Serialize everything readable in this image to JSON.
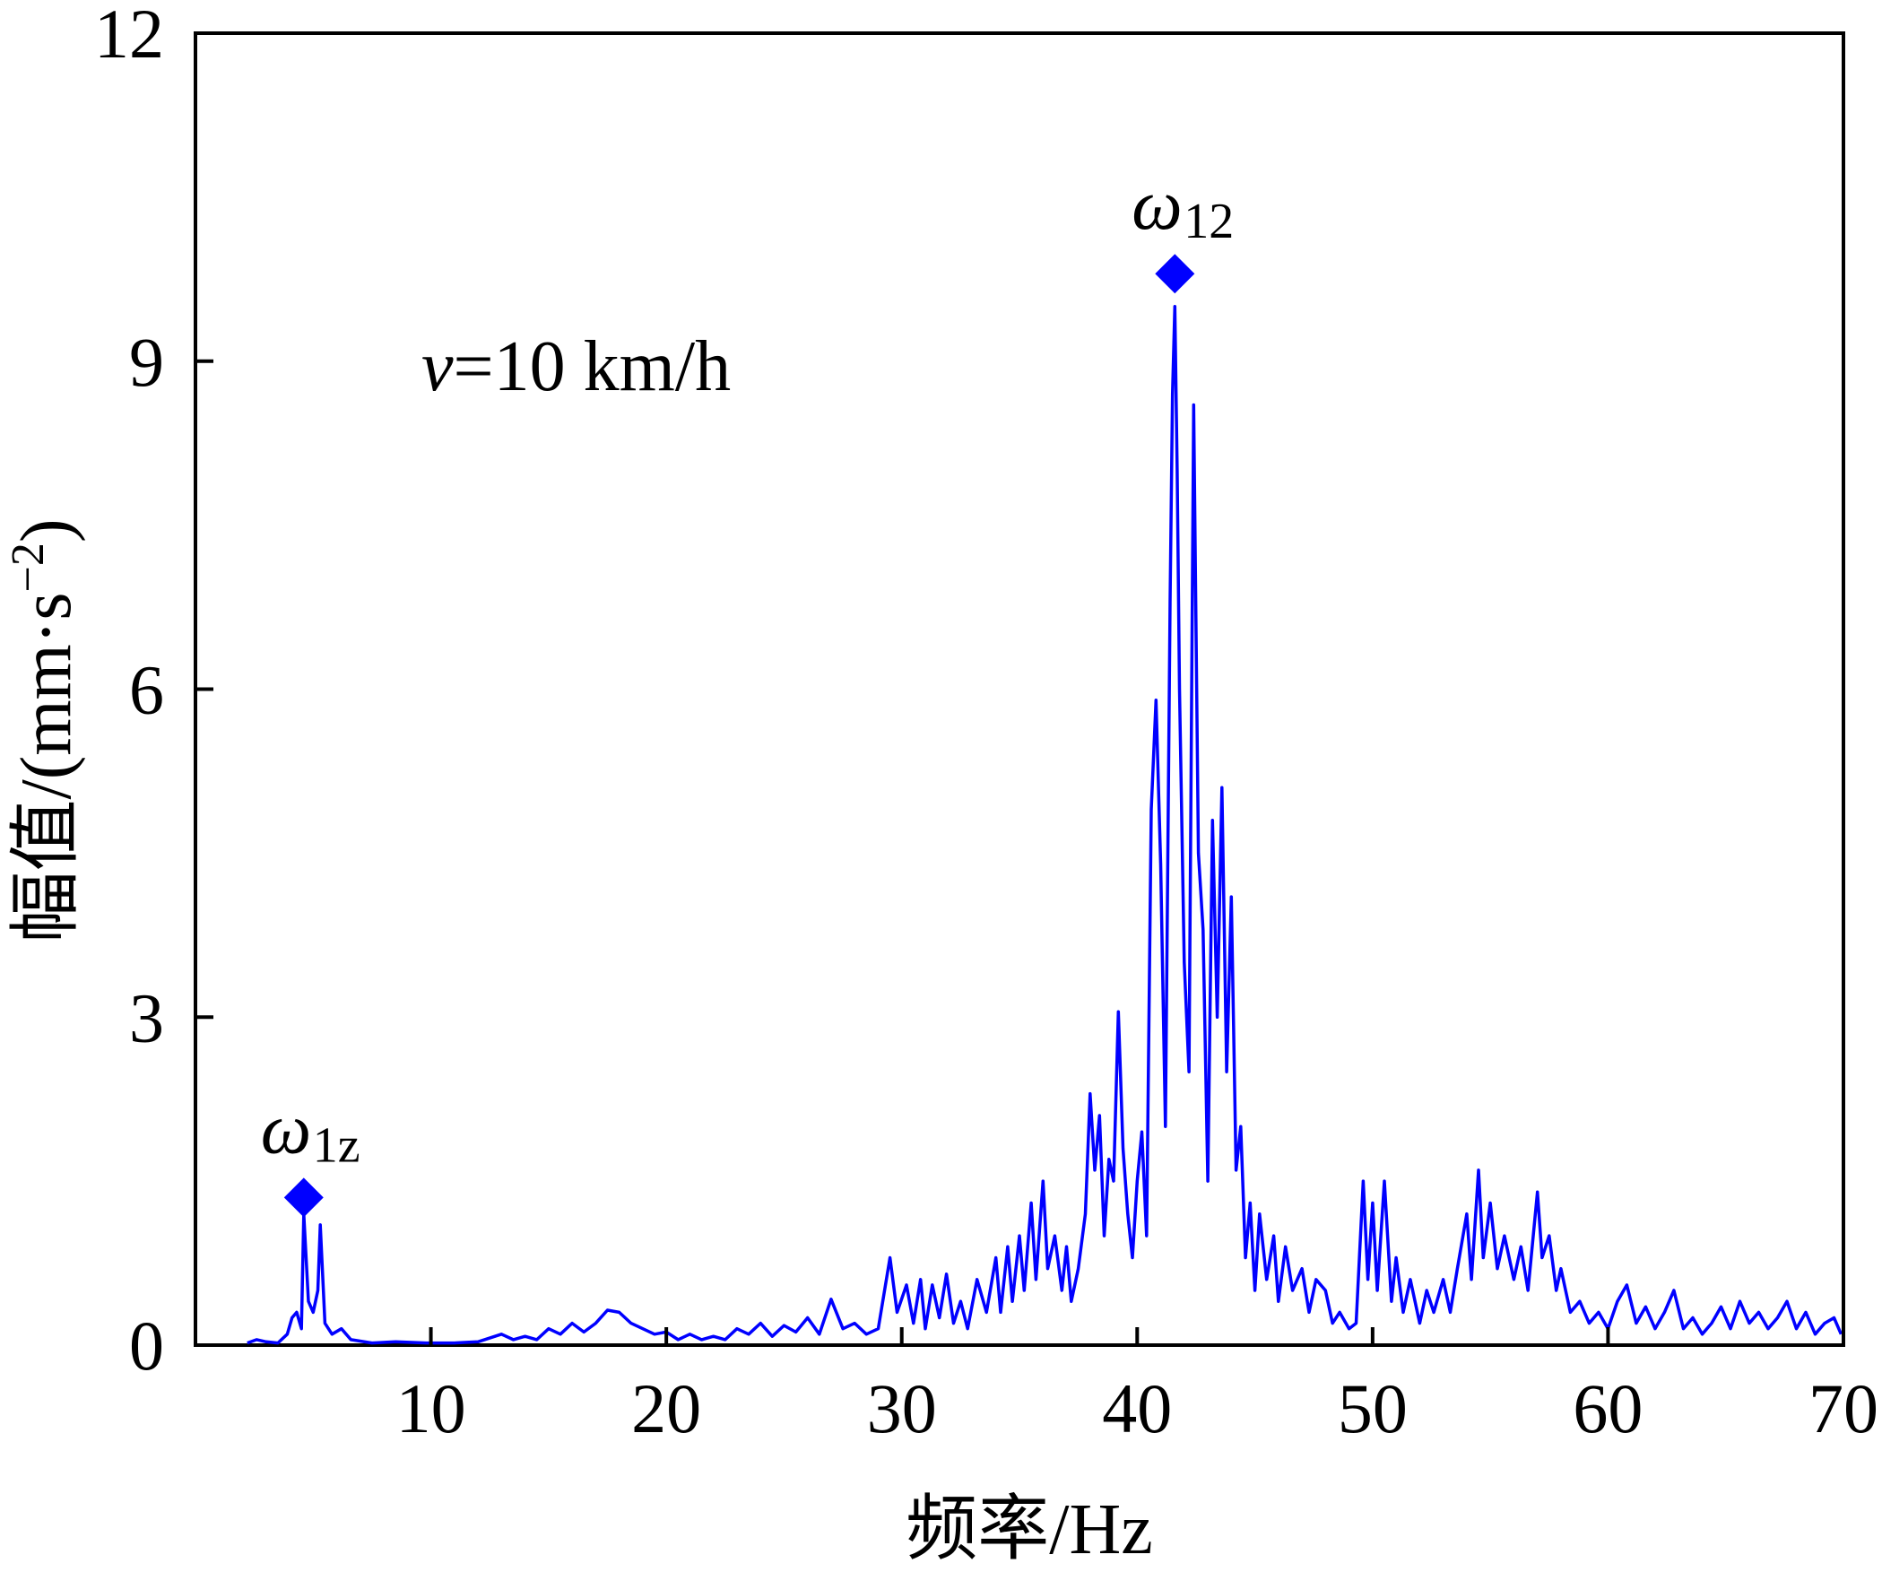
{
  "chart_data": {
    "type": "line",
    "xlabel": "频率/Hz",
    "ylabel": "幅值/(mm·s",
    "ylabel_sup": "−2",
    "ylabel_close": ")",
    "xlim": [
      0,
      70
    ],
    "ylim": [
      0,
      12
    ],
    "x_ticks": [
      10,
      20,
      30,
      40,
      50,
      60,
      70
    ],
    "x_tick_labels": [
      "10",
      "20",
      "30",
      "40",
      "50",
      "60",
      "70"
    ],
    "y_ticks": [
      0,
      3,
      6,
      9,
      12
    ],
    "y_tick_labels": [
      "0",
      "3",
      "6",
      "9",
      "12"
    ],
    "grid": false,
    "line_color": "#0000ff",
    "marker_color": "#0000ff",
    "annotation": {
      "prefix": "v",
      "text": "=10 km/h"
    },
    "peaks": [
      {
        "symbol": "ω",
        "subscript": "1z",
        "x": 4.6,
        "y": 1.35
      },
      {
        "symbol": "ω",
        "subscript": "12",
        "x": 41.6,
        "y": 9.8
      }
    ],
    "series": [
      {
        "values": [
          [
            2.2,
            0.02
          ],
          [
            2.6,
            0.05
          ],
          [
            3.0,
            0.03
          ],
          [
            3.5,
            0.02
          ],
          [
            3.9,
            0.1
          ],
          [
            4.1,
            0.25
          ],
          [
            4.3,
            0.3
          ],
          [
            4.5,
            0.15
          ],
          [
            4.6,
            1.2
          ],
          [
            4.7,
            0.8
          ],
          [
            4.8,
            0.4
          ],
          [
            5.0,
            0.3
          ],
          [
            5.2,
            0.5
          ],
          [
            5.3,
            1.1
          ],
          [
            5.5,
            0.2
          ],
          [
            5.8,
            0.1
          ],
          [
            6.2,
            0.15
          ],
          [
            6.6,
            0.05
          ],
          [
            7.5,
            0.02
          ],
          [
            8.5,
            0.03
          ],
          [
            9.8,
            0.02
          ],
          [
            11.0,
            0.02
          ],
          [
            12.0,
            0.03
          ],
          [
            13.0,
            0.1
          ],
          [
            13.5,
            0.05
          ],
          [
            14.0,
            0.08
          ],
          [
            14.5,
            0.05
          ],
          [
            15.0,
            0.15
          ],
          [
            15.5,
            0.1
          ],
          [
            16.0,
            0.2
          ],
          [
            16.5,
            0.12
          ],
          [
            17.0,
            0.2
          ],
          [
            17.5,
            0.32
          ],
          [
            18.0,
            0.3
          ],
          [
            18.5,
            0.2
          ],
          [
            19.0,
            0.15
          ],
          [
            19.5,
            0.1
          ],
          [
            20.0,
            0.12
          ],
          [
            20.5,
            0.05
          ],
          [
            21.0,
            0.1
          ],
          [
            21.5,
            0.05
          ],
          [
            22.0,
            0.08
          ],
          [
            22.5,
            0.05
          ],
          [
            23.0,
            0.15
          ],
          [
            23.5,
            0.1
          ],
          [
            24.0,
            0.2
          ],
          [
            24.5,
            0.08
          ],
          [
            25.0,
            0.18
          ],
          [
            25.5,
            0.12
          ],
          [
            26.0,
            0.25
          ],
          [
            26.5,
            0.1
          ],
          [
            27.0,
            0.42
          ],
          [
            27.5,
            0.15
          ],
          [
            28.0,
            0.2
          ],
          [
            28.5,
            0.1
          ],
          [
            29.0,
            0.15
          ],
          [
            29.5,
            0.8
          ],
          [
            29.8,
            0.3
          ],
          [
            30.2,
            0.55
          ],
          [
            30.5,
            0.2
          ],
          [
            30.8,
            0.6
          ],
          [
            31.0,
            0.15
          ],
          [
            31.3,
            0.55
          ],
          [
            31.6,
            0.25
          ],
          [
            31.9,
            0.65
          ],
          [
            32.2,
            0.2
          ],
          [
            32.5,
            0.4
          ],
          [
            32.8,
            0.15
          ],
          [
            33.2,
            0.6
          ],
          [
            33.6,
            0.3
          ],
          [
            34.0,
            0.8
          ],
          [
            34.2,
            0.3
          ],
          [
            34.5,
            0.9
          ],
          [
            34.7,
            0.4
          ],
          [
            35.0,
            1.0
          ],
          [
            35.2,
            0.5
          ],
          [
            35.5,
            1.3
          ],
          [
            35.7,
            0.6
          ],
          [
            36.0,
            1.5
          ],
          [
            36.2,
            0.7
          ],
          [
            36.5,
            1.0
          ],
          [
            36.8,
            0.5
          ],
          [
            37.0,
            0.9
          ],
          [
            37.2,
            0.4
          ],
          [
            37.5,
            0.7
          ],
          [
            37.8,
            1.2
          ],
          [
            38.0,
            2.3
          ],
          [
            38.2,
            1.6
          ],
          [
            38.4,
            2.1
          ],
          [
            38.6,
            1.0
          ],
          [
            38.8,
            1.7
          ],
          [
            39.0,
            1.5
          ],
          [
            39.2,
            3.05
          ],
          [
            39.4,
            1.8
          ],
          [
            39.6,
            1.2
          ],
          [
            39.8,
            0.8
          ],
          [
            40.0,
            1.5
          ],
          [
            40.2,
            1.95
          ],
          [
            40.4,
            1.0
          ],
          [
            40.6,
            4.9
          ],
          [
            40.8,
            5.9
          ],
          [
            41.0,
            4.4
          ],
          [
            41.2,
            2.0
          ],
          [
            41.4,
            6.8
          ],
          [
            41.5,
            8.7
          ],
          [
            41.6,
            9.5
          ],
          [
            41.7,
            8.0
          ],
          [
            41.8,
            6.0
          ],
          [
            42.0,
            3.5
          ],
          [
            42.2,
            2.5
          ],
          [
            42.4,
            8.6
          ],
          [
            42.6,
            4.5
          ],
          [
            42.8,
            3.8
          ],
          [
            43.0,
            1.5
          ],
          [
            43.2,
            4.8
          ],
          [
            43.4,
            3.0
          ],
          [
            43.6,
            5.1
          ],
          [
            43.8,
            2.5
          ],
          [
            44.0,
            4.1
          ],
          [
            44.2,
            1.6
          ],
          [
            44.4,
            2.0
          ],
          [
            44.6,
            0.8
          ],
          [
            44.8,
            1.3
          ],
          [
            45.0,
            0.5
          ],
          [
            45.2,
            1.2
          ],
          [
            45.5,
            0.6
          ],
          [
            45.8,
            1.0
          ],
          [
            46.0,
            0.4
          ],
          [
            46.3,
            0.9
          ],
          [
            46.6,
            0.5
          ],
          [
            47.0,
            0.7
          ],
          [
            47.3,
            0.3
          ],
          [
            47.6,
            0.6
          ],
          [
            48.0,
            0.5
          ],
          [
            48.3,
            0.2
          ],
          [
            48.6,
            0.3
          ],
          [
            49.0,
            0.15
          ],
          [
            49.3,
            0.2
          ],
          [
            49.6,
            1.5
          ],
          [
            49.8,
            0.6
          ],
          [
            50.0,
            1.3
          ],
          [
            50.2,
            0.5
          ],
          [
            50.5,
            1.5
          ],
          [
            50.8,
            0.4
          ],
          [
            51.0,
            0.8
          ],
          [
            51.3,
            0.3
          ],
          [
            51.6,
            0.6
          ],
          [
            52.0,
            0.2
          ],
          [
            52.3,
            0.5
          ],
          [
            52.6,
            0.3
          ],
          [
            53.0,
            0.6
          ],
          [
            53.3,
            0.3
          ],
          [
            53.6,
            0.7
          ],
          [
            54.0,
            1.2
          ],
          [
            54.2,
            0.6
          ],
          [
            54.5,
            1.6
          ],
          [
            54.7,
            0.8
          ],
          [
            55.0,
            1.3
          ],
          [
            55.3,
            0.7
          ],
          [
            55.6,
            1.0
          ],
          [
            56.0,
            0.6
          ],
          [
            56.3,
            0.9
          ],
          [
            56.6,
            0.5
          ],
          [
            57.0,
            1.4
          ],
          [
            57.2,
            0.8
          ],
          [
            57.5,
            1.0
          ],
          [
            57.8,
            0.5
          ],
          [
            58.0,
            0.7
          ],
          [
            58.4,
            0.3
          ],
          [
            58.8,
            0.4
          ],
          [
            59.2,
            0.2
          ],
          [
            59.6,
            0.3
          ],
          [
            60.0,
            0.15
          ],
          [
            60.4,
            0.4
          ],
          [
            60.8,
            0.55
          ],
          [
            61.2,
            0.2
          ],
          [
            61.6,
            0.35
          ],
          [
            62.0,
            0.15
          ],
          [
            62.4,
            0.3
          ],
          [
            62.8,
            0.5
          ],
          [
            63.2,
            0.15
          ],
          [
            63.6,
            0.25
          ],
          [
            64.0,
            0.1
          ],
          [
            64.4,
            0.2
          ],
          [
            64.8,
            0.35
          ],
          [
            65.2,
            0.15
          ],
          [
            65.6,
            0.4
          ],
          [
            66.0,
            0.2
          ],
          [
            66.4,
            0.3
          ],
          [
            66.8,
            0.15
          ],
          [
            67.2,
            0.25
          ],
          [
            67.6,
            0.4
          ],
          [
            68.0,
            0.15
          ],
          [
            68.4,
            0.3
          ],
          [
            68.8,
            0.1
          ],
          [
            69.2,
            0.2
          ],
          [
            69.6,
            0.25
          ],
          [
            69.9,
            0.1
          ]
        ]
      }
    ]
  }
}
